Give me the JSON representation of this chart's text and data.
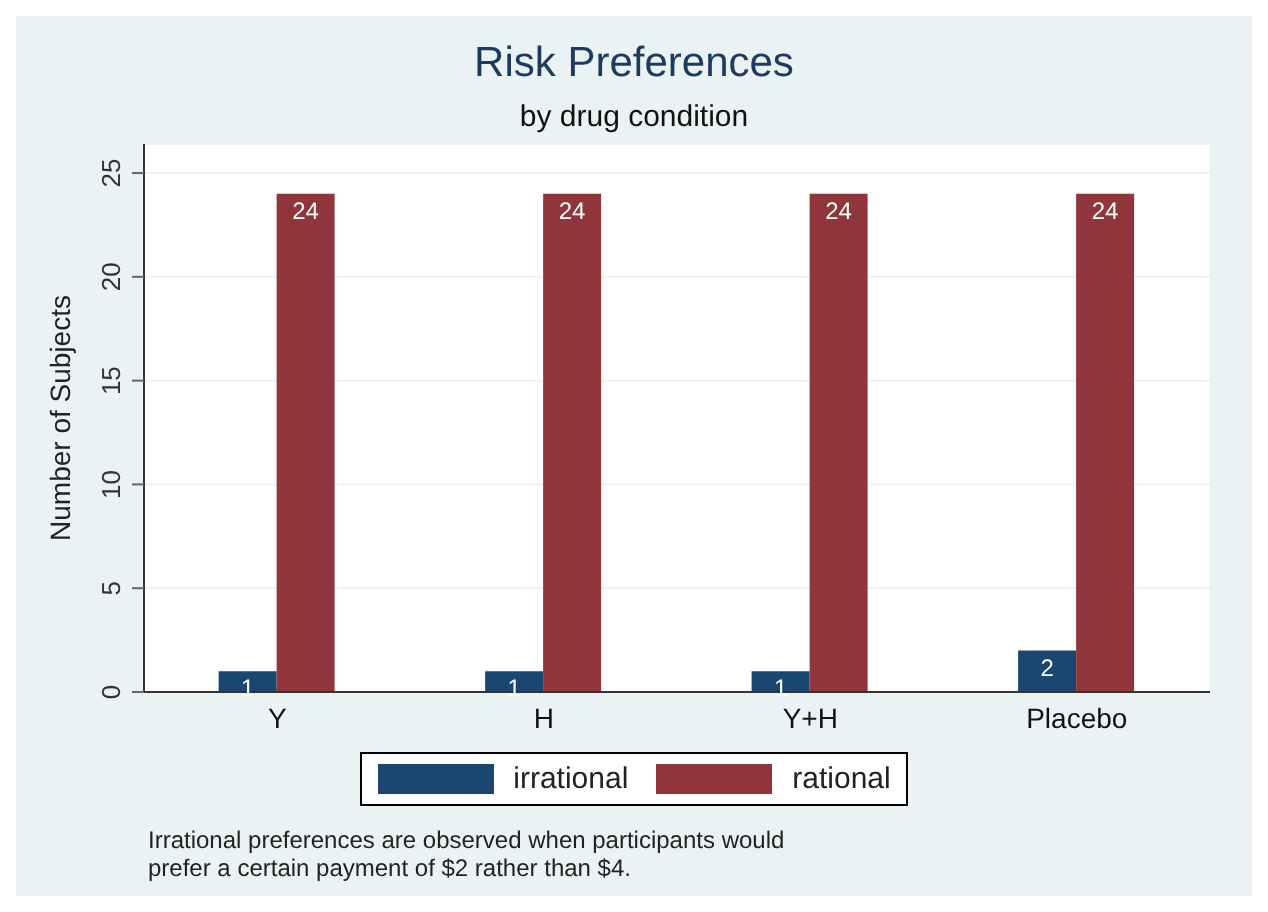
{
  "chart_data": {
    "type": "bar",
    "title": "Risk Preferences",
    "subtitle": "by drug condition",
    "ylabel": "Number of Subjects",
    "categories": [
      "Y",
      "H",
      "Y+H",
      "Placebo"
    ],
    "series": [
      {
        "name": "irrational",
        "color": "#1a476f",
        "values": [
          1,
          1,
          1,
          2
        ]
      },
      {
        "name": "rational",
        "color": "#90353b",
        "values": [
          24,
          24,
          24,
          24
        ]
      }
    ],
    "ylim": [
      0,
      26.4
    ],
    "yticks": [
      0,
      5,
      10,
      15,
      20,
      25
    ],
    "grid": "y",
    "legend": "bottom",
    "data_labels": true,
    "annotations": [
      "Irrational preferences are observed when participants would prefer a certain payment of $2 rather than $4."
    ]
  }
}
